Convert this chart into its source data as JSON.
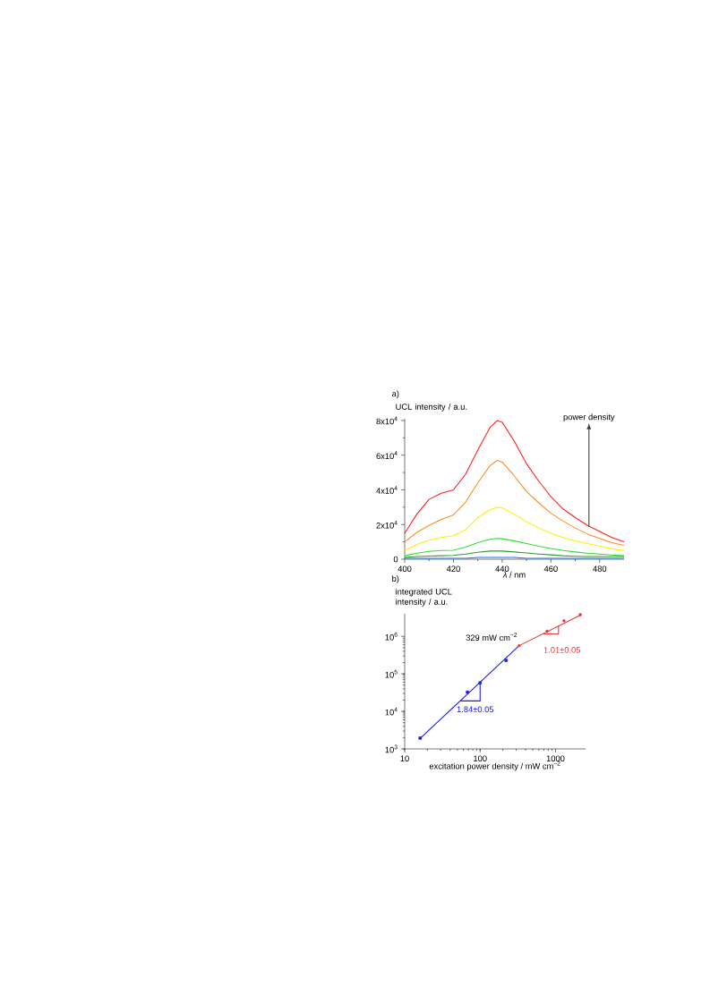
{
  "chart_data": [
    {
      "type": "line",
      "title": "a)",
      "xlabel": "*λ* / nm",
      "ylabel": "UCL intensity / a.u.",
      "x": [
        400,
        405,
        410,
        415,
        420,
        425,
        430,
        435,
        438,
        440,
        445,
        450,
        455,
        460,
        465,
        470,
        475,
        480,
        485,
        490
      ],
      "xlim": [
        400,
        490
      ],
      "ylim": [
        0,
        81000
      ],
      "xticks": [
        400,
        420,
        440,
        460,
        480
      ],
      "yticks": [
        {
          "value": 0,
          "label": "0"
        },
        {
          "value": 20000,
          "label": "2x10$^{4}$"
        },
        {
          "value": 40000,
          "label": "4x10$^{4}$"
        },
        {
          "value": 60000,
          "label": "6x10$^{4}$"
        },
        {
          "value": 80000,
          "label": "8x10$^{4}$"
        }
      ],
      "marker": "none",
      "line_style": "solid",
      "annotations": [
        "power density"
      ],
      "series": [
        {
          "color": "#ff2020",
          "values": [
            15000,
            26000,
            34500,
            38000,
            40000,
            49000,
            63000,
            76000,
            80000,
            79000,
            68000,
            55000,
            45000,
            36000,
            29000,
            24000,
            19500,
            16000,
            12500,
            10000
          ]
        },
        {
          "color": "#ff8c1a",
          "values": [
            10000,
            15500,
            19500,
            23000,
            25500,
            33000,
            44000,
            54000,
            57000,
            56000,
            48000,
            39000,
            32500,
            26500,
            22000,
            18000,
            14500,
            12000,
            9500,
            8000
          ]
        },
        {
          "color": "#ffee00",
          "values": [
            5000,
            8500,
            11000,
            12500,
            13500,
            17000,
            24000,
            28500,
            30000,
            29500,
            26000,
            21500,
            18000,
            15000,
            12500,
            10500,
            9000,
            7500,
            6000,
            5000
          ]
        },
        {
          "color": "#33dd33",
          "values": [
            2000,
            3500,
            4500,
            5000,
            5200,
            7000,
            9500,
            11500,
            12000,
            11800,
            10500,
            9000,
            7500,
            6200,
            5000,
            4200,
            3500,
            3000,
            2400,
            2000
          ]
        },
        {
          "color": "#339933",
          "values": [
            1000,
            1500,
            1800,
            2000,
            2200,
            3000,
            4000,
            4700,
            4800,
            4700,
            4200,
            3600,
            3000,
            2500,
            2000,
            1700,
            1500,
            1500,
            1500,
            1500
          ]
        },
        {
          "color": "#1a6aff",
          "values": [
            500,
            500,
            500,
            500,
            500,
            500,
            1000,
            1000,
            1000,
            1000,
            1000,
            500,
            500,
            500,
            500,
            500,
            500,
            500,
            500,
            500
          ]
        }
      ]
    },
    {
      "type": "scatter",
      "title": "b)",
      "xlabel": "excitation power density / mW cm$^{−2}$",
      "ylabel": "integrated UCL intensity / a.u.",
      "log": "xy",
      "xlim": [
        10,
        2500
      ],
      "ylim": [
        1000,
        4000000
      ],
      "xticks": [
        10,
        100,
        1000
      ],
      "yticks": [
        {
          "value": 1000,
          "label": "10$^{3}$"
        },
        {
          "value": 10000,
          "label": "10$^{4}$"
        },
        {
          "value": 100000,
          "label": "10$^{5}$"
        },
        {
          "value": 1000000,
          "label": "10$^{6}$"
        }
      ],
      "line_style": "solid",
      "annotations": [
        {
          "text": "329 mW cm$^{−2}$",
          "x": 329,
          "y": 565000
        },
        "1.84±0.05",
        "1.01±0.05"
      ],
      "series": [
        {
          "type": "scatter",
          "marker": "square",
          "color": "#1a1aee",
          "x": [
            16,
            68,
            100,
            221
          ],
          "values": [
            1940,
            32500,
            57500,
            229000
          ]
        },
        {
          "type": "scatter",
          "marker": "circle",
          "color": "#ee3333",
          "x": [
            329,
            773,
            1294,
            2128
          ],
          "values": [
            565000,
            1370000,
            2600000,
            3770000
          ]
        },
        {
          "type": "line",
          "marker": "none",
          "color": "#1a1aee",
          "x": [
            16,
            329
          ],
          "values": [
            1900,
            565000
          ]
        },
        {
          "type": "line",
          "marker": "none",
          "color": "#ee3333",
          "x": [
            329,
            2200
          ],
          "values": [
            565000,
            3800000
          ]
        },
        {
          "type": "line",
          "marker": "none",
          "color": "#1a1aee",
          "x": [
            55,
            100,
            100
          ],
          "values": [
            19000,
            19000,
            57500
          ]
        },
        {
          "type": "line",
          "marker": "none",
          "color": "#ee3333",
          "x": [
            692,
            1096,
            1096
          ],
          "values": [
            1160000,
            1160000,
            1940000
          ]
        }
      ]
    }
  ]
}
